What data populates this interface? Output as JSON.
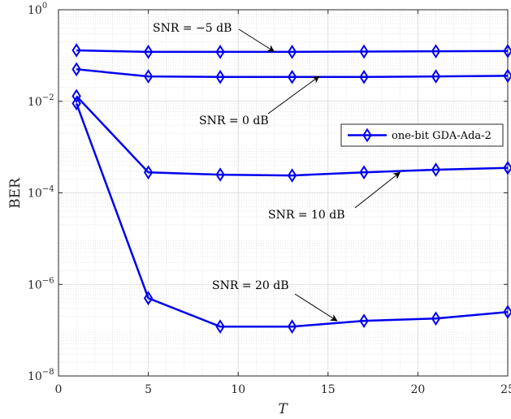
{
  "chart_data": {
    "type": "line",
    "xlabel": "T",
    "ylabel": "BER",
    "xlim": [
      0,
      25
    ],
    "ylim": [
      1e-08,
      1
    ],
    "y_scale": "log",
    "x_ticks": [
      0,
      5,
      10,
      15,
      20,
      25
    ],
    "x_tick_labels": [
      "0",
      "5",
      "10",
      "15",
      "20",
      "25"
    ],
    "y_ticks": [
      1e-08,
      1e-06,
      0.0001,
      0.01,
      1
    ],
    "y_tick_bases": [
      "10",
      "10",
      "10",
      "10",
      "10"
    ],
    "y_tick_exps": [
      "−8",
      "−6",
      "−4",
      "−2",
      "0"
    ],
    "grid": true,
    "legend_position": "right",
    "line_color": "#0000ee",
    "legend_label": "one-bit GDA-Ada-2",
    "series": [
      {
        "snr_label": "SNR = −5 dB",
        "x": [
          1,
          5,
          9,
          13,
          17,
          21,
          25
        ],
        "y": [
          0.13,
          0.12,
          0.12,
          0.12,
          0.122,
          0.124,
          0.125
        ]
      },
      {
        "snr_label": "SNR = 0 dB",
        "x": [
          1,
          5,
          9,
          13,
          17,
          21,
          25
        ],
        "y": [
          0.05,
          0.035,
          0.034,
          0.034,
          0.034,
          0.035,
          0.036
        ]
      },
      {
        "snr_label": "SNR = 10 dB",
        "x": [
          1,
          5,
          9,
          13,
          17,
          21,
          25
        ],
        "y": [
          0.013,
          0.00028,
          0.00025,
          0.00024,
          0.00028,
          0.00032,
          0.00035
        ]
      },
      {
        "snr_label": "SNR = 20 dB",
        "x": [
          1,
          5,
          9,
          13,
          17,
          21,
          25
        ],
        "y": [
          0.009,
          5e-07,
          1.2e-07,
          1.2e-07,
          1.6e-07,
          1.8e-07,
          2.5e-07
        ]
      }
    ],
    "annotations": [
      {
        "text": "SNR = −5 dB",
        "arrow_to": [
          12,
          0.122
        ]
      },
      {
        "text": "SNR = 0 dB",
        "arrow_to": [
          14.5,
          0.035
        ]
      },
      {
        "text": "SNR = 10 dB",
        "arrow_to": [
          19,
          0.00028
        ]
      },
      {
        "text": "SNR = 20 dB",
        "arrow_to": [
          15.5,
          1.6e-07
        ]
      }
    ]
  }
}
